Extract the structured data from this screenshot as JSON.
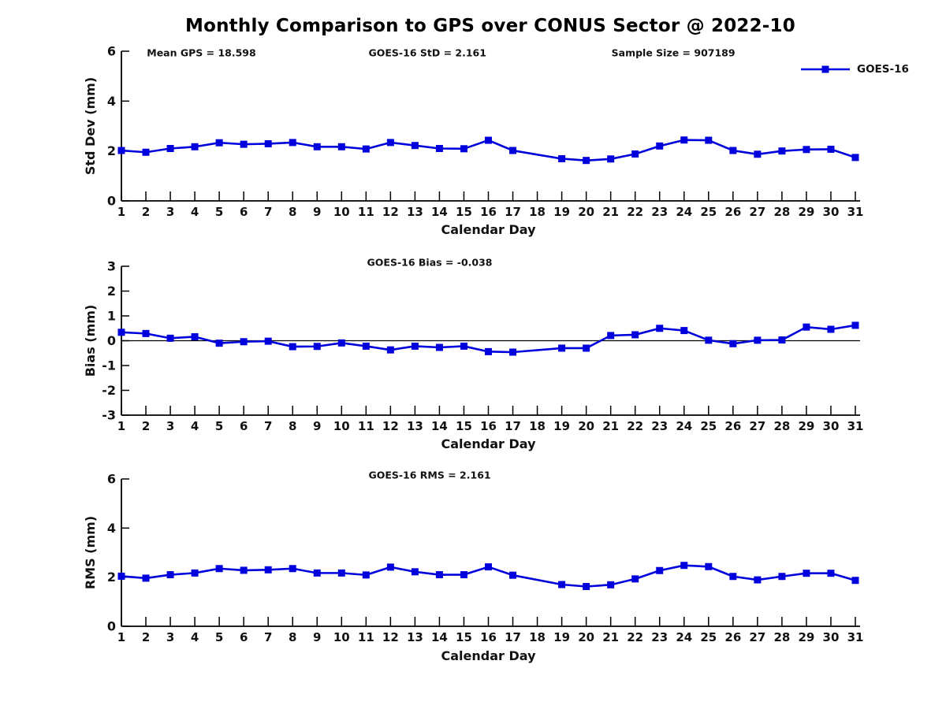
{
  "title": "Monthly Comparison to GPS over CONUS Sector @ 2022-10",
  "xlabel": "Calendar Day",
  "legend": {
    "label": "GOES-16",
    "position": "top-right"
  },
  "colors": {
    "line": "#0000dd",
    "axis": "#000000",
    "text": "#111111",
    "zero_line": "#000000"
  },
  "chart_data": [
    {
      "type": "line",
      "name": "std-dev",
      "annotations": [
        "Mean GPS = 18.598",
        "GOES-16 StD = 2.161",
        "Sample Size = 907189"
      ],
      "ylabel": "Std Dev (mm)",
      "xlabel": "Calendar Day",
      "ylim": [
        0,
        6
      ],
      "yticks": [
        0,
        2,
        4,
        6
      ],
      "grid": false,
      "zero_line": false,
      "x": [
        1,
        2,
        3,
        4,
        5,
        6,
        7,
        8,
        9,
        10,
        11,
        12,
        13,
        14,
        15,
        16,
        17,
        18,
        19,
        20,
        21,
        22,
        23,
        24,
        25,
        26,
        27,
        28,
        29,
        30,
        31
      ],
      "series": [
        {
          "name": "GOES-16",
          "values": [
            2.02,
            1.95,
            2.1,
            2.17,
            2.33,
            2.27,
            2.29,
            2.34,
            2.17,
            2.17,
            2.08,
            2.34,
            2.22,
            2.1,
            2.09,
            2.43,
            2.02,
            null,
            1.69,
            1.62,
            1.68,
            1.88,
            2.2,
            2.44,
            2.43,
            2.02,
            1.87,
            2.0,
            2.06,
            2.07,
            1.74
          ]
        }
      ]
    },
    {
      "type": "line",
      "name": "bias",
      "annotations": [
        "GOES-16 Bias = -0.038"
      ],
      "ylabel": "Bias (mm)",
      "xlabel": "Calendar Day",
      "ylim": [
        -3,
        3
      ],
      "yticks": [
        -3,
        -2,
        -1,
        0,
        1,
        2,
        3
      ],
      "grid": false,
      "zero_line": true,
      "x": [
        1,
        2,
        3,
        4,
        5,
        6,
        7,
        8,
        9,
        10,
        11,
        12,
        13,
        14,
        15,
        16,
        17,
        18,
        19,
        20,
        21,
        22,
        23,
        24,
        25,
        26,
        27,
        28,
        29,
        30,
        31
      ],
      "series": [
        {
          "name": "GOES-16",
          "values": [
            0.34,
            0.29,
            0.1,
            0.16,
            -0.1,
            -0.04,
            -0.02,
            -0.24,
            -0.23,
            -0.09,
            -0.22,
            -0.37,
            -0.22,
            -0.27,
            -0.22,
            -0.44,
            -0.46,
            null,
            -0.3,
            -0.3,
            0.21,
            0.24,
            0.5,
            0.41,
            0.02,
            -0.12,
            0.02,
            0.03,
            0.55,
            0.46,
            0.62
          ]
        }
      ]
    },
    {
      "type": "line",
      "name": "rms",
      "annotations": [
        "GOES-16 RMS = 2.161"
      ],
      "ylabel": "RMS (mm)",
      "xlabel": "Calendar Day",
      "ylim": [
        0,
        6
      ],
      "yticks": [
        0,
        2,
        4,
        6
      ],
      "grid": false,
      "zero_line": false,
      "x": [
        1,
        2,
        3,
        4,
        5,
        6,
        7,
        8,
        9,
        10,
        11,
        12,
        13,
        14,
        15,
        16,
        17,
        18,
        19,
        20,
        21,
        22,
        23,
        24,
        25,
        26,
        27,
        28,
        29,
        30,
        31
      ],
      "series": [
        {
          "name": "GOES-16",
          "values": [
            2.04,
            1.96,
            2.1,
            2.17,
            2.35,
            2.28,
            2.3,
            2.35,
            2.17,
            2.17,
            2.09,
            2.41,
            2.22,
            2.1,
            2.1,
            2.42,
            2.08,
            null,
            1.7,
            1.62,
            1.69,
            1.93,
            2.27,
            2.48,
            2.43,
            2.03,
            1.89,
            2.03,
            2.16,
            2.16,
            1.87
          ]
        }
      ]
    }
  ]
}
